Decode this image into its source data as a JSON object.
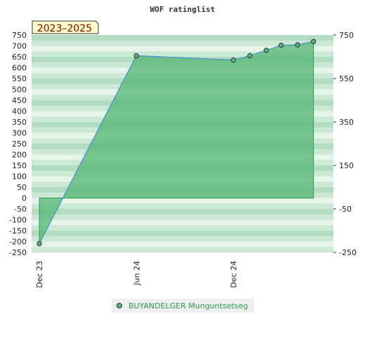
{
  "chart_data": {
    "type": "area",
    "title": "WOF ratinglist",
    "badge": "2023–2025",
    "ylim": [
      -250,
      750
    ],
    "left_ticks": [
      750,
      700,
      650,
      600,
      550,
      500,
      450,
      400,
      350,
      300,
      250,
      200,
      150,
      100,
      50,
      0,
      -50,
      -100,
      -150,
      -200,
      -250
    ],
    "right_ticks": [
      750,
      550,
      350,
      150,
      -50,
      -250
    ],
    "xlim": [
      "2023-12-01",
      "2025-06-01"
    ],
    "x_ticks": [
      {
        "date": "2023-12-01",
        "label": "Dec 23"
      },
      {
        "date": "2024-06-01",
        "label": "Jun 24"
      },
      {
        "date": "2024-12-01",
        "label": "Dec 24"
      }
    ],
    "series": [
      {
        "name": "BUYANDELGER Munguntsetseg",
        "color": "#2e9c4e",
        "points": [
          {
            "x": "2023-12-01",
            "y": -210
          },
          {
            "x": "2024-06-01",
            "y": 655
          },
          {
            "x": "2024-12-01",
            "y": 635
          },
          {
            "x": "2025-01-01",
            "y": 655
          },
          {
            "x": "2025-02-01",
            "y": 680
          },
          {
            "x": "2025-03-01",
            "y": 703
          },
          {
            "x": "2025-04-01",
            "y": 705
          },
          {
            "x": "2025-05-01",
            "y": 720
          }
        ]
      }
    ],
    "colors": {
      "area_fill": "#54b574",
      "line": "#4a90d9",
      "stripe_dark": "#b2dcbf",
      "stripe_light": "#e6f4ea",
      "legend_bg": "#eeeeee",
      "badge_bg": "#ffffcc"
    },
    "grid": true,
    "legend": "bottom-center"
  }
}
